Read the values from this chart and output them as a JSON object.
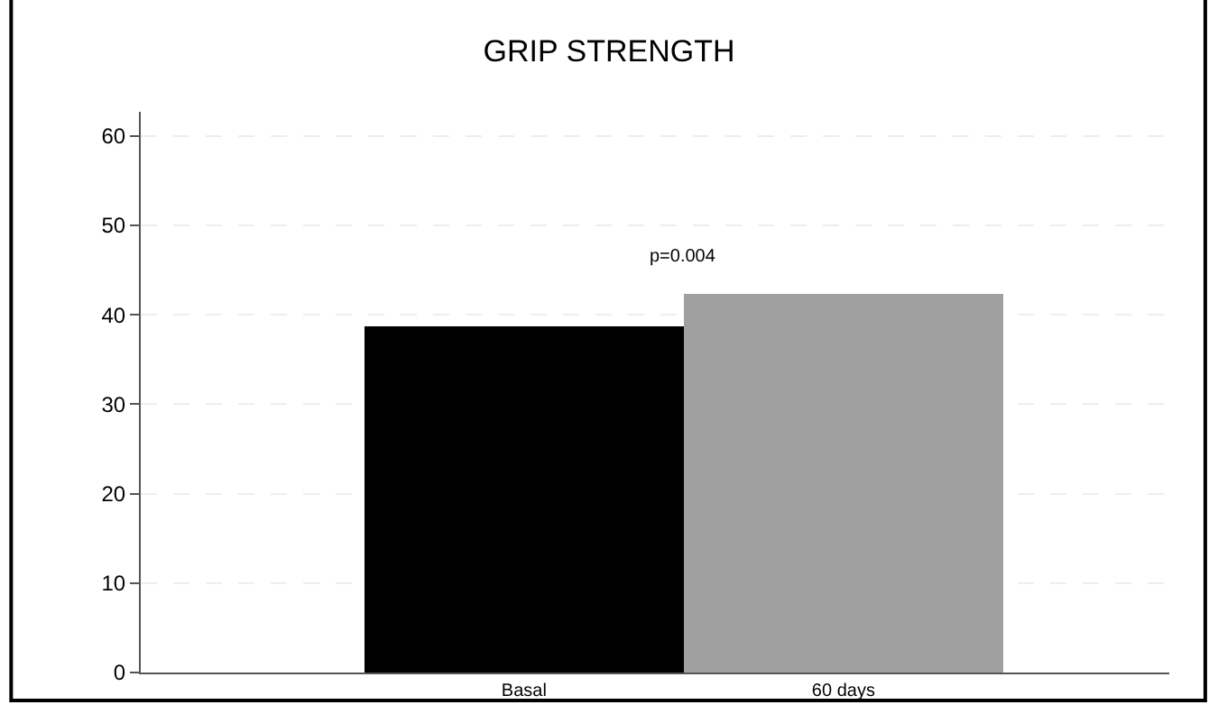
{
  "chart_data": {
    "type": "bar",
    "title": "GRIP STRENGTH",
    "categories": [
      "Basal",
      "60 days"
    ],
    "values": [
      38.8,
      42.4
    ],
    "colors": [
      "#000000",
      "#a0a0a0"
    ],
    "ylim": [
      0,
      62.7
    ],
    "yticks": [
      0,
      10,
      20,
      30,
      40,
      50,
      60
    ],
    "grid": "y",
    "annotations": [
      "p=0.004"
    ]
  }
}
